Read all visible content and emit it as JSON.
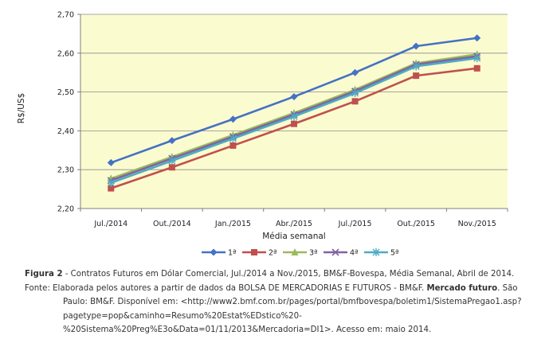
{
  "chart_data": {
    "type": "line",
    "ylabel": "R$/US$",
    "xlabel": "Média semanal",
    "categories": [
      "Jul./2014",
      "Out./2014",
      "Jan./2015",
      "Abr./2015",
      "Jul./2015",
      "Out./2015",
      "Nov./2015"
    ],
    "ylim": [
      2.2,
      2.7
    ],
    "yticks": [
      "2,20",
      "2,30",
      "2,40",
      "2,50",
      "2,60",
      "2,70"
    ],
    "ytick_values": [
      2.2,
      2.3,
      2.4,
      2.5,
      2.6,
      2.7
    ],
    "grid": true,
    "legend_position": "bottom",
    "series": [
      {
        "name": "1ª",
        "color": "#4472c4",
        "marker": "diamond",
        "values": [
          2.318,
          2.375,
          2.43,
          2.488,
          2.55,
          2.618,
          2.639
        ]
      },
      {
        "name": "2ª",
        "color": "#c0504d",
        "marker": "square",
        "values": [
          2.252,
          2.306,
          2.362,
          2.418,
          2.476,
          2.542,
          2.561
        ]
      },
      {
        "name": "3ª",
        "color": "#9bbb59",
        "marker": "triangle",
        "values": [
          2.277,
          2.333,
          2.389,
          2.446,
          2.506,
          2.574,
          2.597
        ]
      },
      {
        "name": "4ª",
        "color": "#8064a2",
        "marker": "x",
        "values": [
          2.272,
          2.329,
          2.385,
          2.442,
          2.502,
          2.571,
          2.592
        ]
      },
      {
        "name": "5ª",
        "color": "#4bacc6",
        "marker": "star",
        "values": [
          2.266,
          2.323,
          2.38,
          2.437,
          2.497,
          2.566,
          2.587
        ]
      }
    ],
    "plot_background": "#fbfbd0"
  },
  "caption": {
    "figure_label": "Figura 2",
    "figure_text": " - Contratos Futuros em Dólar Comercial, Jul./2014 a Nov./2015, BM&F-Bovespa, Média Semanal, Abril de 2014.",
    "source_prefix": "Fonte: Elaborada pelos autores a partir de dados da BOLSA DE MERCADORIAS E FUTUROS - BM&F. ",
    "source_title": "Mercado futuro",
    "source_rest": ". São Paulo: BM&F. Disponível em: <http://www2.bmf.com.br/pages/portal/bmfbovespa/boletim1/SistemaPregao1.asp?pagetype=pop&caminho=Resumo%20Estat%EDstico%20-%20Sistema%20Preg%E3o&Data=01/11/2013&Mercadoria=DI1>. Acesso em: maio 2014."
  }
}
